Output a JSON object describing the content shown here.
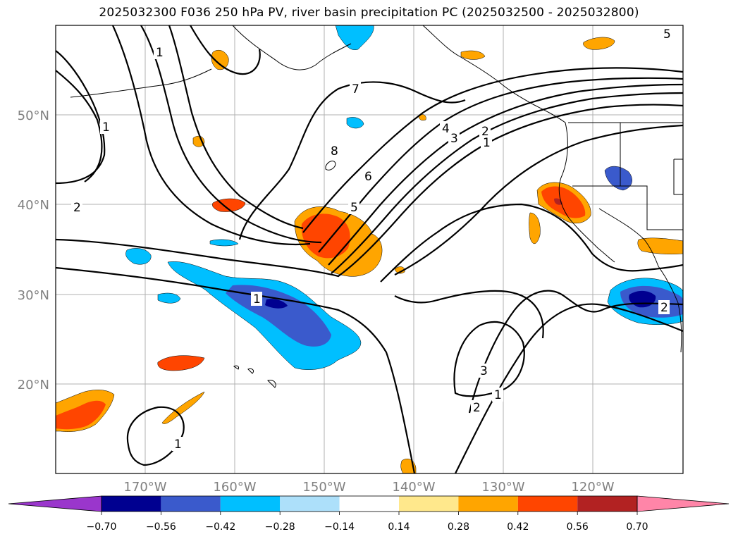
{
  "title": "2025032300 F036 250 hPa PV, river basin precipitation PC (2025032500 - 2025032800)",
  "lat_labels": [
    "50°N",
    "40°N",
    "30°N",
    "20°N"
  ],
  "lon_labels": [
    "170°W",
    "160°W",
    "150°W",
    "140°W",
    "130°W",
    "120°W"
  ],
  "colorbar": {
    "ticks": [
      "−0.70",
      "−0.56",
      "−0.42",
      "−0.28",
      "−0.14",
      "0.14",
      "0.28",
      "0.42",
      "0.56",
      "0.70"
    ],
    "colors": [
      "#9a36cc",
      "#000090",
      "#3a5acc",
      "#00bfff",
      "#ade0fa",
      "#ffffff",
      "#ffe88c",
      "#ffa500",
      "#ff4500",
      "#b22222",
      "#ff85a8"
    ]
  },
  "contour_labels": [
    "1",
    "1",
    "2",
    "7",
    "8",
    "6",
    "5",
    "4",
    "3",
    "2",
    "1",
    "1",
    "3",
    "2",
    "1",
    "1",
    "2",
    "5"
  ],
  "colors": {
    "contour": "#000000",
    "grid": "#b0b0b0",
    "coast": "#000000",
    "axis_text": "#808080"
  }
}
